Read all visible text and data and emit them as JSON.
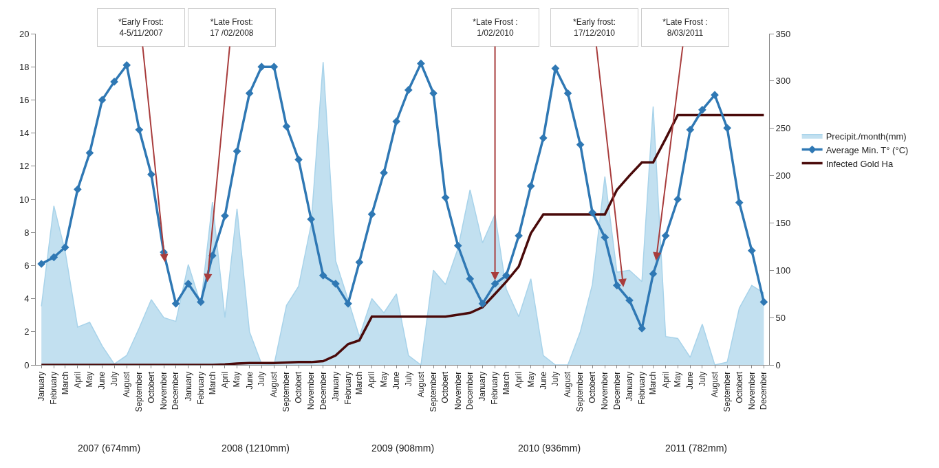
{
  "chart_data": {
    "type": "line",
    "x": [
      "2007-01",
      "2007-02",
      "2007-03",
      "2007-04",
      "2007-05",
      "2007-06",
      "2007-07",
      "2007-08",
      "2007-09",
      "2007-10",
      "2007-11",
      "2007-12",
      "2008-01",
      "2008-02",
      "2008-03",
      "2008-04",
      "2008-05",
      "2008-06",
      "2008-07",
      "2008-08",
      "2008-09",
      "2008-10",
      "2008-11",
      "2008-12",
      "2009-01",
      "2009-02",
      "2009-03",
      "2009-04",
      "2009-05",
      "2009-06",
      "2009-07",
      "2009-08",
      "2009-09",
      "2009-10",
      "2009-11",
      "2009-12",
      "2010-01",
      "2010-02",
      "2010-03",
      "2010-04",
      "2010-05",
      "2010-06",
      "2010-07",
      "2010-08",
      "2010-09",
      "2010-10",
      "2010-11",
      "2010-12",
      "2011-01",
      "2011-02",
      "2011-03",
      "2011-04",
      "2011-05",
      "2011-06",
      "2011-07",
      "2011-08",
      "2011-09",
      "2011-10",
      "2011-11",
      "2011-12"
    ],
    "series": [
      {
        "name": "Precipit./month(mm)",
        "type": "area",
        "axis": "y2",
        "color": "#a8d3ea",
        "marker": "none",
        "values": [
          62,
          168,
          120,
          40,
          45,
          20,
          1,
          10,
          39,
          69,
          50,
          46,
          106,
          64,
          172,
          50,
          165,
          35,
          1,
          0,
          63,
          83,
          148,
          320,
          110,
          69,
          30,
          70,
          55,
          75,
          10,
          0,
          100,
          85,
          123,
          185,
          129,
          159,
          80,
          51,
          91,
          10,
          0,
          0,
          35,
          85,
          199,
          98,
          100,
          88,
          273,
          30,
          28,
          8,
          43,
          0,
          3,
          60,
          84,
          76
        ]
      },
      {
        "name": "Average Min. T° (°C)",
        "type": "line",
        "color": "#2f78b4",
        "marker": "diamond",
        "line_style": "solid",
        "values": [
          6.1,
          6.5,
          7.1,
          10.6,
          12.8,
          16.0,
          17.1,
          18.1,
          14.2,
          11.5,
          6.8,
          3.7,
          4.9,
          3.8,
          6.6,
          9.0,
          12.9,
          16.4,
          18.0,
          18.0,
          14.4,
          12.4,
          8.8,
          5.4,
          4.9,
          3.7,
          6.2,
          9.1,
          11.6,
          14.7,
          16.6,
          18.2,
          16.4,
          10.1,
          7.2,
          5.2,
          3.7,
          4.9,
          5.4,
          7.8,
          10.8,
          13.7,
          17.9,
          16.4,
          13.3,
          9.2,
          7.7,
          4.8,
          3.9,
          2.2,
          5.5,
          7.8,
          10.0,
          14.2,
          15.4,
          16.3,
          14.3,
          9.8,
          6.9,
          3.8
        ]
      },
      {
        "name": "Infected Gold Ha",
        "type": "line",
        "axis": "y2",
        "color": "#4a0a0a",
        "marker": "none",
        "line_style": "solid",
        "values": [
          0,
          0,
          0,
          0,
          0,
          0,
          0,
          0,
          0,
          0,
          0,
          0,
          0,
          0,
          0,
          0.5,
          1.5,
          2,
          2,
          2,
          2.5,
          3,
          3,
          4,
          10,
          22,
          26,
          51,
          51,
          51,
          51,
          51,
          51,
          51,
          53,
          55,
          61,
          75,
          88,
          104,
          139,
          159,
          159,
          159,
          159,
          159,
          159,
          185,
          200,
          214,
          214,
          239,
          264,
          264,
          264,
          264,
          264,
          264,
          264,
          264
        ]
      }
    ],
    "xlim": [
      "2006-12-18",
      "2011-12-14"
    ],
    "xticks": [
      {
        "value": "2007-01",
        "label": "January"
      },
      {
        "value": "2007-02",
        "label": "February"
      },
      {
        "value": "2007-03",
        "label": "March"
      },
      {
        "value": "2007-04",
        "label": "April"
      },
      {
        "value": "2007-05",
        "label": "May"
      },
      {
        "value": "2007-06",
        "label": "June"
      },
      {
        "value": "2007-07",
        "label": "July"
      },
      {
        "value": "2007-08",
        "label": "August"
      },
      {
        "value": "2007-09",
        "label": "September"
      },
      {
        "value": "2007-10",
        "label": "Octobert"
      },
      {
        "value": "2007-11",
        "label": "November"
      },
      {
        "value": "2007-12",
        "label": "December"
      },
      {
        "value": "2008-01",
        "label": "January"
      },
      {
        "value": "2008-02",
        "label": "February"
      },
      {
        "value": "2008-03",
        "label": "March"
      },
      {
        "value": "2008-04",
        "label": "April"
      },
      {
        "value": "2008-05",
        "label": "May"
      },
      {
        "value": "2008-06",
        "label": "June"
      },
      {
        "value": "2008-07",
        "label": "July"
      },
      {
        "value": "2008-08",
        "label": "August"
      },
      {
        "value": "2008-09",
        "label": "September"
      },
      {
        "value": "2008-10",
        "label": "Octobert"
      },
      {
        "value": "2008-11",
        "label": "November"
      },
      {
        "value": "2008-12",
        "label": "December"
      },
      {
        "value": "2009-01",
        "label": "January"
      },
      {
        "value": "2009-02",
        "label": "February"
      },
      {
        "value": "2009-03",
        "label": "March"
      },
      {
        "value": "2009-04",
        "label": "April"
      },
      {
        "value": "2009-05",
        "label": "May"
      },
      {
        "value": "2009-06",
        "label": "June"
      },
      {
        "value": "2009-07",
        "label": "July"
      },
      {
        "value": "2009-08",
        "label": "August"
      },
      {
        "value": "2009-09",
        "label": "September"
      },
      {
        "value": "2009-10",
        "label": "Octobert"
      },
      {
        "value": "2009-11",
        "label": "November"
      },
      {
        "value": "2009-12",
        "label": "December"
      },
      {
        "value": "2010-01",
        "label": "January"
      },
      {
        "value": "2010-02",
        "label": "February"
      },
      {
        "value": "2010-03",
        "label": "March"
      },
      {
        "value": "2010-04",
        "label": "April"
      },
      {
        "value": "2010-05",
        "label": "May"
      },
      {
        "value": "2010-06",
        "label": "June"
      },
      {
        "value": "2010-07",
        "label": "July"
      },
      {
        "value": "2010-08",
        "label": "August"
      },
      {
        "value": "2010-09",
        "label": "September"
      },
      {
        "value": "2010-10",
        "label": "Octobert"
      },
      {
        "value": "2010-11",
        "label": "November"
      },
      {
        "value": "2010-12",
        "label": "December"
      },
      {
        "value": "2011-01",
        "label": "January"
      },
      {
        "value": "2011-02",
        "label": "February"
      },
      {
        "value": "2011-03",
        "label": "March"
      },
      {
        "value": "2011-04",
        "label": "April"
      },
      {
        "value": "2011-05",
        "label": "May"
      },
      {
        "value": "2011-06",
        "label": "June"
      },
      {
        "value": "2011-07",
        "label": "July"
      },
      {
        "value": "2011-08",
        "label": "August"
      },
      {
        "value": "2011-09",
        "label": "September"
      },
      {
        "value": "2011-10",
        "label": "Octobert"
      },
      {
        "value": "2011-11",
        "label": "November"
      },
      {
        "value": "2011-12",
        "label": "December"
      }
    ],
    "ylim": [
      0,
      20
    ],
    "yticks": [
      0,
      2,
      4,
      6,
      8,
      10,
      12,
      14,
      16,
      18,
      20
    ],
    "y2lim": [
      0,
      350
    ],
    "y2ticks": [
      0,
      50,
      100,
      150,
      200,
      250,
      300,
      350
    ],
    "annotations": [
      {
        "text": "*Early Frost:\n4-5/11/2007",
        "x": "2007-11-04",
        "y": 6.2
      },
      {
        "text": "*Late Frost:\n17 /02/2008",
        "x": "2008-02-17",
        "y": 5.0
      },
      {
        "text": "*Late Frost :\n1/02/2010",
        "x": "2010-02-01",
        "y": 5.1
      },
      {
        "text": "*Early frost:\n17/12/2010",
        "x": "2010-12-17",
        "y": 4.7
      },
      {
        "text": "*Late Frost :\n8/03/2011",
        "x": "2011-03-08",
        "y": 6.3
      },
      "2007 (674mm)",
      "2008 (1210mm)",
      "2009 (908mm)",
      "2010 (936mm)",
      "2011 (782mm)"
    ],
    "grid": false,
    "legend": "right"
  }
}
